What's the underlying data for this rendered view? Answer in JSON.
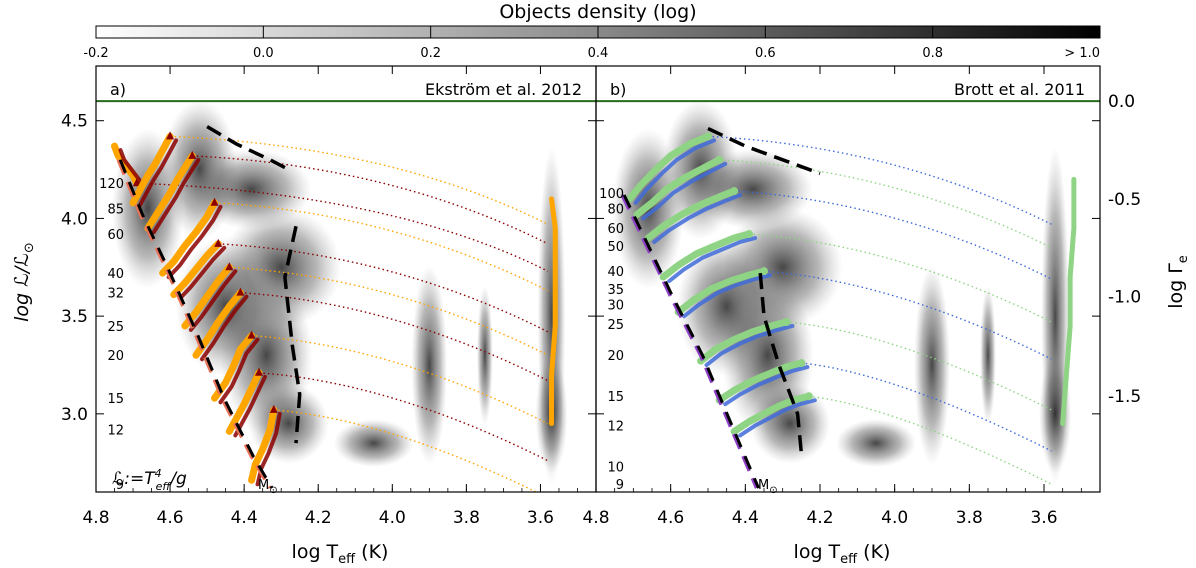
{
  "chart_data": {
    "type": "scatter",
    "colorbar": {
      "title": "Objects density (log)",
      "range": [
        -0.2,
        1.0
      ],
      "ticks": [
        "-0.2",
        "0.0",
        "0.2",
        "0.4",
        "0.6",
        "0.8",
        "> 1.0"
      ],
      "tick_values": [
        -0.2,
        0.0,
        0.2,
        0.4,
        0.6,
        0.8,
        1.0
      ]
    },
    "axes": {
      "xlabel": "log T",
      "xlabel_sub": "eff",
      "xlabel_unit": " (K)",
      "xlim": [
        4.8,
        3.45
      ],
      "xticks": [
        "4.8",
        "4.6",
        "4.4",
        "4.2",
        "4.0",
        "3.8",
        "3.6"
      ],
      "xtick_values": [
        4.8,
        4.6,
        4.4,
        4.2,
        4.0,
        3.8,
        3.6
      ],
      "ylabel": "log ℒ/ℒ",
      "ylabel_sub": "⊙",
      "ylim": [
        2.6,
        4.78
      ],
      "yticks": [
        "3.0",
        "3.5",
        "4.0",
        "4.5"
      ],
      "ytick_values": [
        3.0,
        3.5,
        4.0,
        4.5
      ],
      "right_ylabel": "log Γ",
      "right_ylabel_sub": "e",
      "right_yticks": [
        "0.0",
        "-0.5",
        "-1.0",
        "-1.5"
      ],
      "right_ytick_logL": [
        4.6,
        4.1,
        3.6,
        3.09
      ]
    },
    "eddington_limit_logL": 4.6,
    "panels": [
      {
        "label": "a)",
        "title": "Ekström et al. 2012",
        "formula": "ℒ:=T",
        "formula_sup": "4",
        "formula_sub": "eff",
        "formula_tail": "/g",
        "mass_labels": [
          "120",
          "85",
          "60",
          "40",
          "32",
          "25",
          "20",
          "15",
          "12",
          "9"
        ],
        "mass_label_logL": [
          4.18,
          4.05,
          3.92,
          3.72,
          3.62,
          3.45,
          3.3,
          3.08,
          2.92,
          2.64
        ],
        "msun_label": "M",
        "msun_sub": "⊙",
        "colors": {
          "main": "#ffa500",
          "secondary": "#8b0000",
          "zams": "#e9735a"
        },
        "tracks": [
          {
            "mass": "120",
            "x": [
              4.75,
              4.74,
              4.72,
              4.7,
              4.69
            ],
            "y": [
              4.37,
              4.32,
              4.27,
              4.22,
              4.18
            ]
          },
          {
            "mass": "85",
            "x": [
              4.7,
              4.68,
              4.66,
              4.64,
              4.62,
              4.6
            ],
            "y": [
              4.08,
              4.15,
              4.22,
              4.28,
              4.35,
              4.42
            ]
          },
          {
            "mass": "60",
            "x": [
              4.66,
              4.64,
              4.62,
              4.6,
              4.58,
              4.56,
              4.54
            ],
            "y": [
              3.95,
              4.01,
              4.07,
              4.13,
              4.2,
              4.26,
              4.32
            ]
          },
          {
            "mass": "40",
            "x": [
              4.62,
              4.59,
              4.56,
              4.53,
              4.5,
              4.48
            ],
            "y": [
              3.72,
              3.78,
              3.86,
              3.93,
              4.01,
              4.08
            ]
          },
          {
            "mass": "32",
            "x": [
              4.59,
              4.56,
              4.53,
              4.5,
              4.47
            ],
            "y": [
              3.61,
              3.67,
              3.74,
              3.81,
              3.87
            ]
          },
          {
            "mass": "25",
            "x": [
              4.56,
              4.53,
              4.5,
              4.47,
              4.44
            ],
            "y": [
              3.45,
              3.52,
              3.6,
              3.68,
              3.75
            ]
          },
          {
            "mass": "20",
            "x": [
              4.53,
              4.5,
              4.47,
              4.44,
              4.41
            ],
            "y": [
              3.3,
              3.38,
              3.47,
              3.55,
              3.62
            ]
          },
          {
            "mass": "15",
            "x": [
              4.48,
              4.45,
              4.43,
              4.41,
              4.38
            ],
            "y": [
              3.08,
              3.16,
              3.24,
              3.33,
              3.4
            ]
          },
          {
            "mass": "12",
            "x": [
              4.44,
              4.42,
              4.4,
              4.38,
              4.36
            ],
            "y": [
              2.91,
              2.98,
              3.05,
              3.13,
              3.21
            ]
          },
          {
            "mass": "9",
            "x": [
              4.38,
              4.37,
              4.35,
              4.33,
              4.32
            ],
            "y": [
              2.66,
              2.74,
              2.82,
              2.92,
              3.02
            ]
          }
        ],
        "rsg_track": {
          "x": [
            3.57,
            3.57,
            3.56,
            3.56,
            3.56,
            3.57
          ],
          "y": [
            2.95,
            3.2,
            3.45,
            3.7,
            3.95,
            4.1
          ]
        },
        "zams": {
          "x": [
            4.74,
            4.68,
            4.61,
            4.53,
            4.46,
            4.38,
            4.33
          ],
          "y": [
            4.3,
            4.02,
            3.74,
            3.4,
            3.08,
            2.78,
            2.62
          ]
        },
        "tams": {
          "x": [
            4.5,
            4.42,
            4.33,
            4.28
          ],
          "y": [
            4.47,
            4.38,
            4.3,
            4.25
          ]
        },
        "tams_lower": {
          "x": [
            4.26,
            4.29,
            4.27,
            4.25,
            4.26
          ],
          "y": [
            3.96,
            3.7,
            3.35,
            3.1,
            2.85
          ]
        }
      },
      {
        "label": "b)",
        "title": "Brott et al. 2011",
        "mass_labels": [
          "100",
          "80",
          "60",
          "50",
          "40",
          "35",
          "30",
          "25",
          "20",
          "15",
          "12",
          "10",
          "9"
        ],
        "mass_label_logL": [
          4.13,
          4.05,
          3.95,
          3.86,
          3.73,
          3.64,
          3.56,
          3.46,
          3.3,
          3.09,
          2.94,
          2.73,
          2.64
        ],
        "msun_label": "M",
        "msun_sub": "⊙",
        "colors": {
          "main": "#8fd485",
          "secondary": "#3f6bd8",
          "zams": "#8d3fc6"
        },
        "tracks": [
          {
            "mass": "100",
            "x": [
              4.71,
              4.68,
              4.64,
              4.6,
              4.55,
              4.5
            ],
            "y": [
              4.1,
              4.17,
              4.25,
              4.32,
              4.38,
              4.42
            ]
          },
          {
            "mass": "80",
            "x": [
              4.69,
              4.65,
              4.61,
              4.56,
              4.51,
              4.47
            ],
            "y": [
              4.02,
              4.08,
              4.15,
              4.21,
              4.26,
              4.3
            ]
          },
          {
            "mass": "60",
            "x": [
              4.66,
              4.62,
              4.57,
              4.52,
              4.47,
              4.43
            ],
            "y": [
              3.9,
              3.96,
              4.02,
              4.07,
              4.11,
              4.14
            ]
          },
          {
            "mass": "40",
            "x": [
              4.62,
              4.58,
              4.53,
              4.48,
              4.43,
              4.39
            ],
            "y": [
              3.7,
              3.76,
              3.82,
              3.86,
              3.9,
              3.92
            ]
          },
          {
            "mass": "30",
            "x": [
              4.58,
              4.54,
              4.49,
              4.44,
              4.39,
              4.35
            ],
            "y": [
              3.52,
              3.58,
              3.64,
              3.68,
              3.71,
              3.73
            ]
          },
          {
            "mass": "20",
            "x": [
              4.52,
              4.48,
              4.43,
              4.38,
              4.33,
              4.29
            ],
            "y": [
              3.27,
              3.33,
              3.38,
              3.42,
              3.45,
              3.47
            ]
          },
          {
            "mass": "15",
            "x": [
              4.47,
              4.43,
              4.38,
              4.33,
              4.29,
              4.25
            ],
            "y": [
              3.07,
              3.12,
              3.17,
              3.21,
              3.24,
              3.26
            ]
          },
          {
            "mass": "12",
            "x": [
              4.43,
              4.39,
              4.35,
              4.31,
              4.27,
              4.23
            ],
            "y": [
              2.91,
              2.96,
              3.0,
              3.04,
              3.07,
              3.09
            ]
          }
        ],
        "rsg_track": {
          "x": [
            3.55,
            3.54,
            3.53,
            3.53,
            3.52,
            3.52
          ],
          "y": [
            2.95,
            3.2,
            3.45,
            3.7,
            3.95,
            4.2
          ]
        },
        "zams": {
          "x": [
            4.73,
            4.67,
            4.6,
            4.52,
            4.45,
            4.37
          ],
          "y": [
            4.12,
            3.88,
            3.6,
            3.3,
            2.98,
            2.62
          ]
        },
        "tams": {
          "x": [
            4.5,
            4.4,
            4.3,
            4.2
          ],
          "y": [
            4.46,
            4.37,
            4.3,
            4.23
          ]
        },
        "tams_lower": {
          "x": [
            4.36,
            4.35,
            4.31,
            4.26,
            4.25
          ],
          "y": [
            3.72,
            3.5,
            3.25,
            3.0,
            2.8
          ]
        }
      }
    ]
  }
}
